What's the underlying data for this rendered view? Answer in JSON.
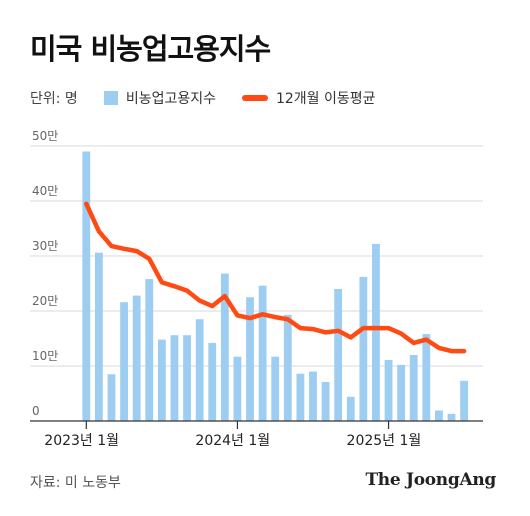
{
  "title": "미국 비농업고용지수",
  "legend": {
    "unit": "단위: 명",
    "bar_label": "비농업고용지수",
    "line_label": "12개월 이동평균"
  },
  "source": "자료: 미 노동부",
  "brand": "The JoongAng",
  "colors": {
    "bar": "#9dcdf0",
    "line": "#ff4a14",
    "grid": "#d9d9d9"
  },
  "chart_data": {
    "type": "bar",
    "title": "미국 비농업고용지수",
    "x": [
      "2023-01",
      "2023-02",
      "2023-03",
      "2023-04",
      "2023-05",
      "2023-06",
      "2023-07",
      "2023-08",
      "2023-09",
      "2023-10",
      "2023-11",
      "2023-12",
      "2024-01",
      "2024-02",
      "2024-03",
      "2024-04",
      "2024-05",
      "2024-06",
      "2024-07",
      "2024-08",
      "2024-09",
      "2024-10",
      "2024-11",
      "2024-12",
      "2025-01",
      "2025-02",
      "2025-03",
      "2025-04",
      "2025-05",
      "2025-06",
      "2025-07",
      "2025-08"
    ],
    "x_tick_labels": [
      {
        "index": 0,
        "label": "2023년 1월"
      },
      {
        "index": 12,
        "label": "2024년 1월"
      },
      {
        "index": 24,
        "label": "2025년 1월"
      }
    ],
    "series": [
      {
        "name": "비농업고용지수",
        "type": "bar",
        "values": [
          490000,
          306000,
          85000,
          216000,
          228000,
          258000,
          148000,
          156000,
          156000,
          185000,
          142000,
          268000,
          117000,
          225000,
          246000,
          117000,
          193000,
          86000,
          90000,
          71000,
          240000,
          44000,
          262000,
          322000,
          111000,
          102000,
          120000,
          158000,
          19000,
          13000,
          73000,
          null
        ]
      },
      {
        "name": "12개월 이동평균",
        "type": "line",
        "values": [
          395000,
          345000,
          318000,
          313000,
          309000,
          295000,
          252000,
          245000,
          237000,
          219000,
          209000,
          227000,
          192000,
          187000,
          194000,
          189000,
          185000,
          169000,
          167000,
          161000,
          164000,
          152000,
          169000,
          169000,
          169000,
          159000,
          142000,
          148000,
          133000,
          127000,
          127000,
          null
        ]
      }
    ],
    "ylim": [
      0,
      500000
    ],
    "y_ticks": [
      0,
      100000,
      200000,
      300000,
      400000,
      500000
    ],
    "y_tick_labels": [
      "0",
      "10만",
      "20만",
      "30만",
      "40만",
      "50만"
    ],
    "grid": true,
    "legend_position": "top-left"
  }
}
